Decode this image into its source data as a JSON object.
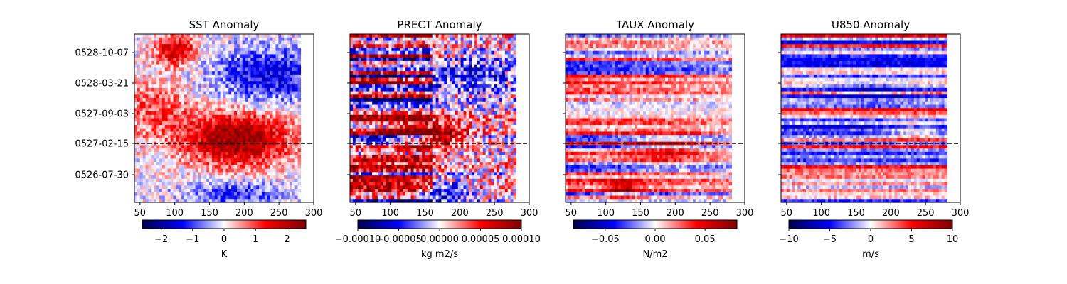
{
  "chart_data": [
    {
      "type": "heatmap",
      "title": "SST Anomaly",
      "x_ticks": [
        50,
        100,
        150,
        200,
        250,
        300
      ],
      "xlim": [
        42,
        300
      ],
      "data_xlim": [
        42,
        281
      ],
      "y_ticks": [
        "0528-10-07",
        "0528-03-21",
        "0527-09-03",
        "0527-02-15",
        "0526-07-30"
      ],
      "show_y_labels": true,
      "reference_line": "0527-02-15",
      "colormap": "seismic",
      "colorbar": {
        "ticks": [
          -2,
          -1,
          0,
          1,
          2
        ],
        "tick_labels": [
          "−2",
          "−1",
          "0",
          "1",
          "2"
        ],
        "range": [
          -2.6,
          2.6
        ],
        "label": "K"
      }
    },
    {
      "type": "heatmap",
      "title": "PRECT Anomaly",
      "x_ticks": [
        50,
        100,
        150,
        200,
        250,
        300
      ],
      "xlim": [
        42,
        300
      ],
      "data_xlim": [
        42,
        281
      ],
      "y_ticks": [
        "0528-10-07",
        "0528-03-21",
        "0527-09-03",
        "0527-02-15",
        "0526-07-30"
      ],
      "show_y_labels": false,
      "reference_line": "0527-02-15",
      "colormap": "seismic",
      "colorbar": {
        "ticks": [
          -0.0001,
          -5e-05,
          0,
          5e-05,
          0.0001
        ],
        "tick_labels": [
          "−0.00010",
          "−0.00005",
          "0.00000",
          "0.00005",
          "0.00010"
        ],
        "range": [
          -0.0001,
          0.0001
        ],
        "label": "kg m2/s"
      }
    },
    {
      "type": "heatmap",
      "title": "TAUX Anomaly",
      "x_ticks": [
        50,
        100,
        150,
        200,
        250,
        300
      ],
      "xlim": [
        42,
        300
      ],
      "data_xlim": [
        42,
        281
      ],
      "y_ticks": [
        "0528-10-07",
        "0528-03-21",
        "0527-09-03",
        "0527-02-15",
        "0526-07-30"
      ],
      "show_y_labels": false,
      "reference_line": "0527-02-15",
      "colormap": "seismic",
      "colorbar": {
        "ticks": [
          -0.05,
          0,
          0.05
        ],
        "tick_labels": [
          "−0.05",
          "0.00",
          "0.05"
        ],
        "range": [
          -0.082,
          0.082
        ],
        "label": "N/m2"
      }
    },
    {
      "type": "heatmap",
      "title": "U850 Anomaly",
      "x_ticks": [
        50,
        100,
        150,
        200,
        250,
        300
      ],
      "xlim": [
        42,
        300
      ],
      "data_xlim": [
        42,
        281
      ],
      "y_ticks": [
        "0528-10-07",
        "0528-03-21",
        "0527-09-03",
        "0527-02-15",
        "0526-07-30"
      ],
      "show_y_labels": false,
      "reference_line": "0527-02-15",
      "colormap": "seismic",
      "colorbar": {
        "ticks": [
          -10,
          -5,
          0,
          5,
          10
        ],
        "tick_labels": [
          "−10",
          "−5",
          "0",
          "5",
          "10"
        ],
        "range": [
          -10,
          10
        ],
        "label": "m/s"
      }
    }
  ]
}
